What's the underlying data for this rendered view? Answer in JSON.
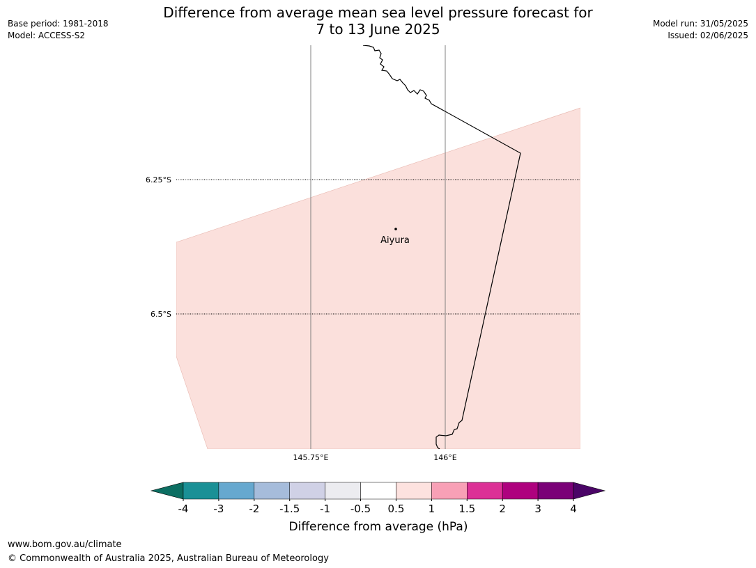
{
  "title": {
    "line1": "Difference from average mean sea level pressure forecast for",
    "line2": "7 to 13 June 2025"
  },
  "meta_left": {
    "base_period": "Base period: 1981-2018",
    "model": "Model: ACCESS-S2"
  },
  "meta_right": {
    "model_run": "Model run: 31/05/2025",
    "issued": "Issued: 02/06/2025"
  },
  "map": {
    "lat_labels": [
      "6.25°S",
      "6.5°S"
    ],
    "lon_labels": [
      "145.75°E",
      "146°E"
    ],
    "place": {
      "name": "Aiyura",
      "lat": -6.34,
      "lon": 145.9
    },
    "anomaly_fill_color": "#fbe0dc"
  },
  "colorbar": {
    "label": "Difference from average (hPa)",
    "ticks": [
      "-4",
      "-3",
      "-2",
      "-1.5",
      "-1",
      "-0.5",
      "0.5",
      "1",
      "1.5",
      "2",
      "3",
      "4"
    ],
    "under_color": "#0c6e62",
    "over_color": "#4b0567",
    "colors": [
      "#1a9096",
      "#66a8cf",
      "#a6bcdb",
      "#d0d1e6",
      "#ececf0",
      "#ffffff",
      "#fde2df",
      "#f8a0b6",
      "#dc3096",
      "#ae017e",
      "#7a0177"
    ]
  },
  "footer": {
    "url": "www.bom.gov.au/climate",
    "copyright": "© Commonwealth of Australia 2025, Australian Bureau of Meteorology"
  }
}
